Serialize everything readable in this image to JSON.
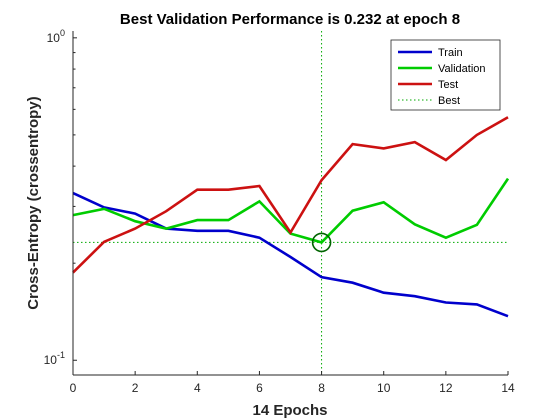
{
  "chart_data": {
    "type": "line",
    "title": "Best Validation Performance is 0.232 at epoch 8",
    "xlabel": "14 Epochs",
    "ylabel": "Cross-Entropy  (crossentropy)",
    "xlim": [
      0,
      14
    ],
    "ylim": [
      0.09,
      1.05
    ],
    "yscale": "log",
    "x_ticks": [
      "0",
      "2",
      "4",
      "6",
      "8",
      "10",
      "12",
      "14"
    ],
    "y_ticks": [
      {
        "base": "10",
        "exp": "0",
        "value": 1
      },
      {
        "base": "10",
        "exp": "-1",
        "value": 0.1
      }
    ],
    "x": [
      0,
      1,
      2,
      3,
      4,
      5,
      6,
      7,
      8,
      9,
      10,
      11,
      12,
      13,
      14
    ],
    "series": [
      {
        "name": "Train",
        "color": "#0000cc",
        "values": [
          0.33,
          0.298,
          0.285,
          0.256,
          0.252,
          0.252,
          0.24,
          0.209,
          0.181,
          0.174,
          0.162,
          0.158,
          0.151,
          0.149,
          0.137
        ]
      },
      {
        "name": "Validation",
        "color": "#00cc00",
        "values": [
          0.282,
          0.295,
          0.27,
          0.256,
          0.272,
          0.272,
          0.311,
          0.247,
          0.232,
          0.291,
          0.309,
          0.264,
          0.24,
          0.263,
          0.366
        ]
      },
      {
        "name": "Test",
        "color": "#cc1111",
        "values": [
          0.187,
          0.233,
          0.256,
          0.29,
          0.338,
          0.338,
          0.347,
          0.249,
          0.362,
          0.468,
          0.454,
          0.475,
          0.418,
          0.5,
          0.567
        ]
      }
    ],
    "best": {
      "name": "Best",
      "epoch": 8,
      "value": 0.232,
      "color": "#00aa00"
    },
    "legend": {
      "position": "top-right",
      "entries": [
        "Train",
        "Validation",
        "Test",
        "Best"
      ]
    },
    "grid": false
  }
}
